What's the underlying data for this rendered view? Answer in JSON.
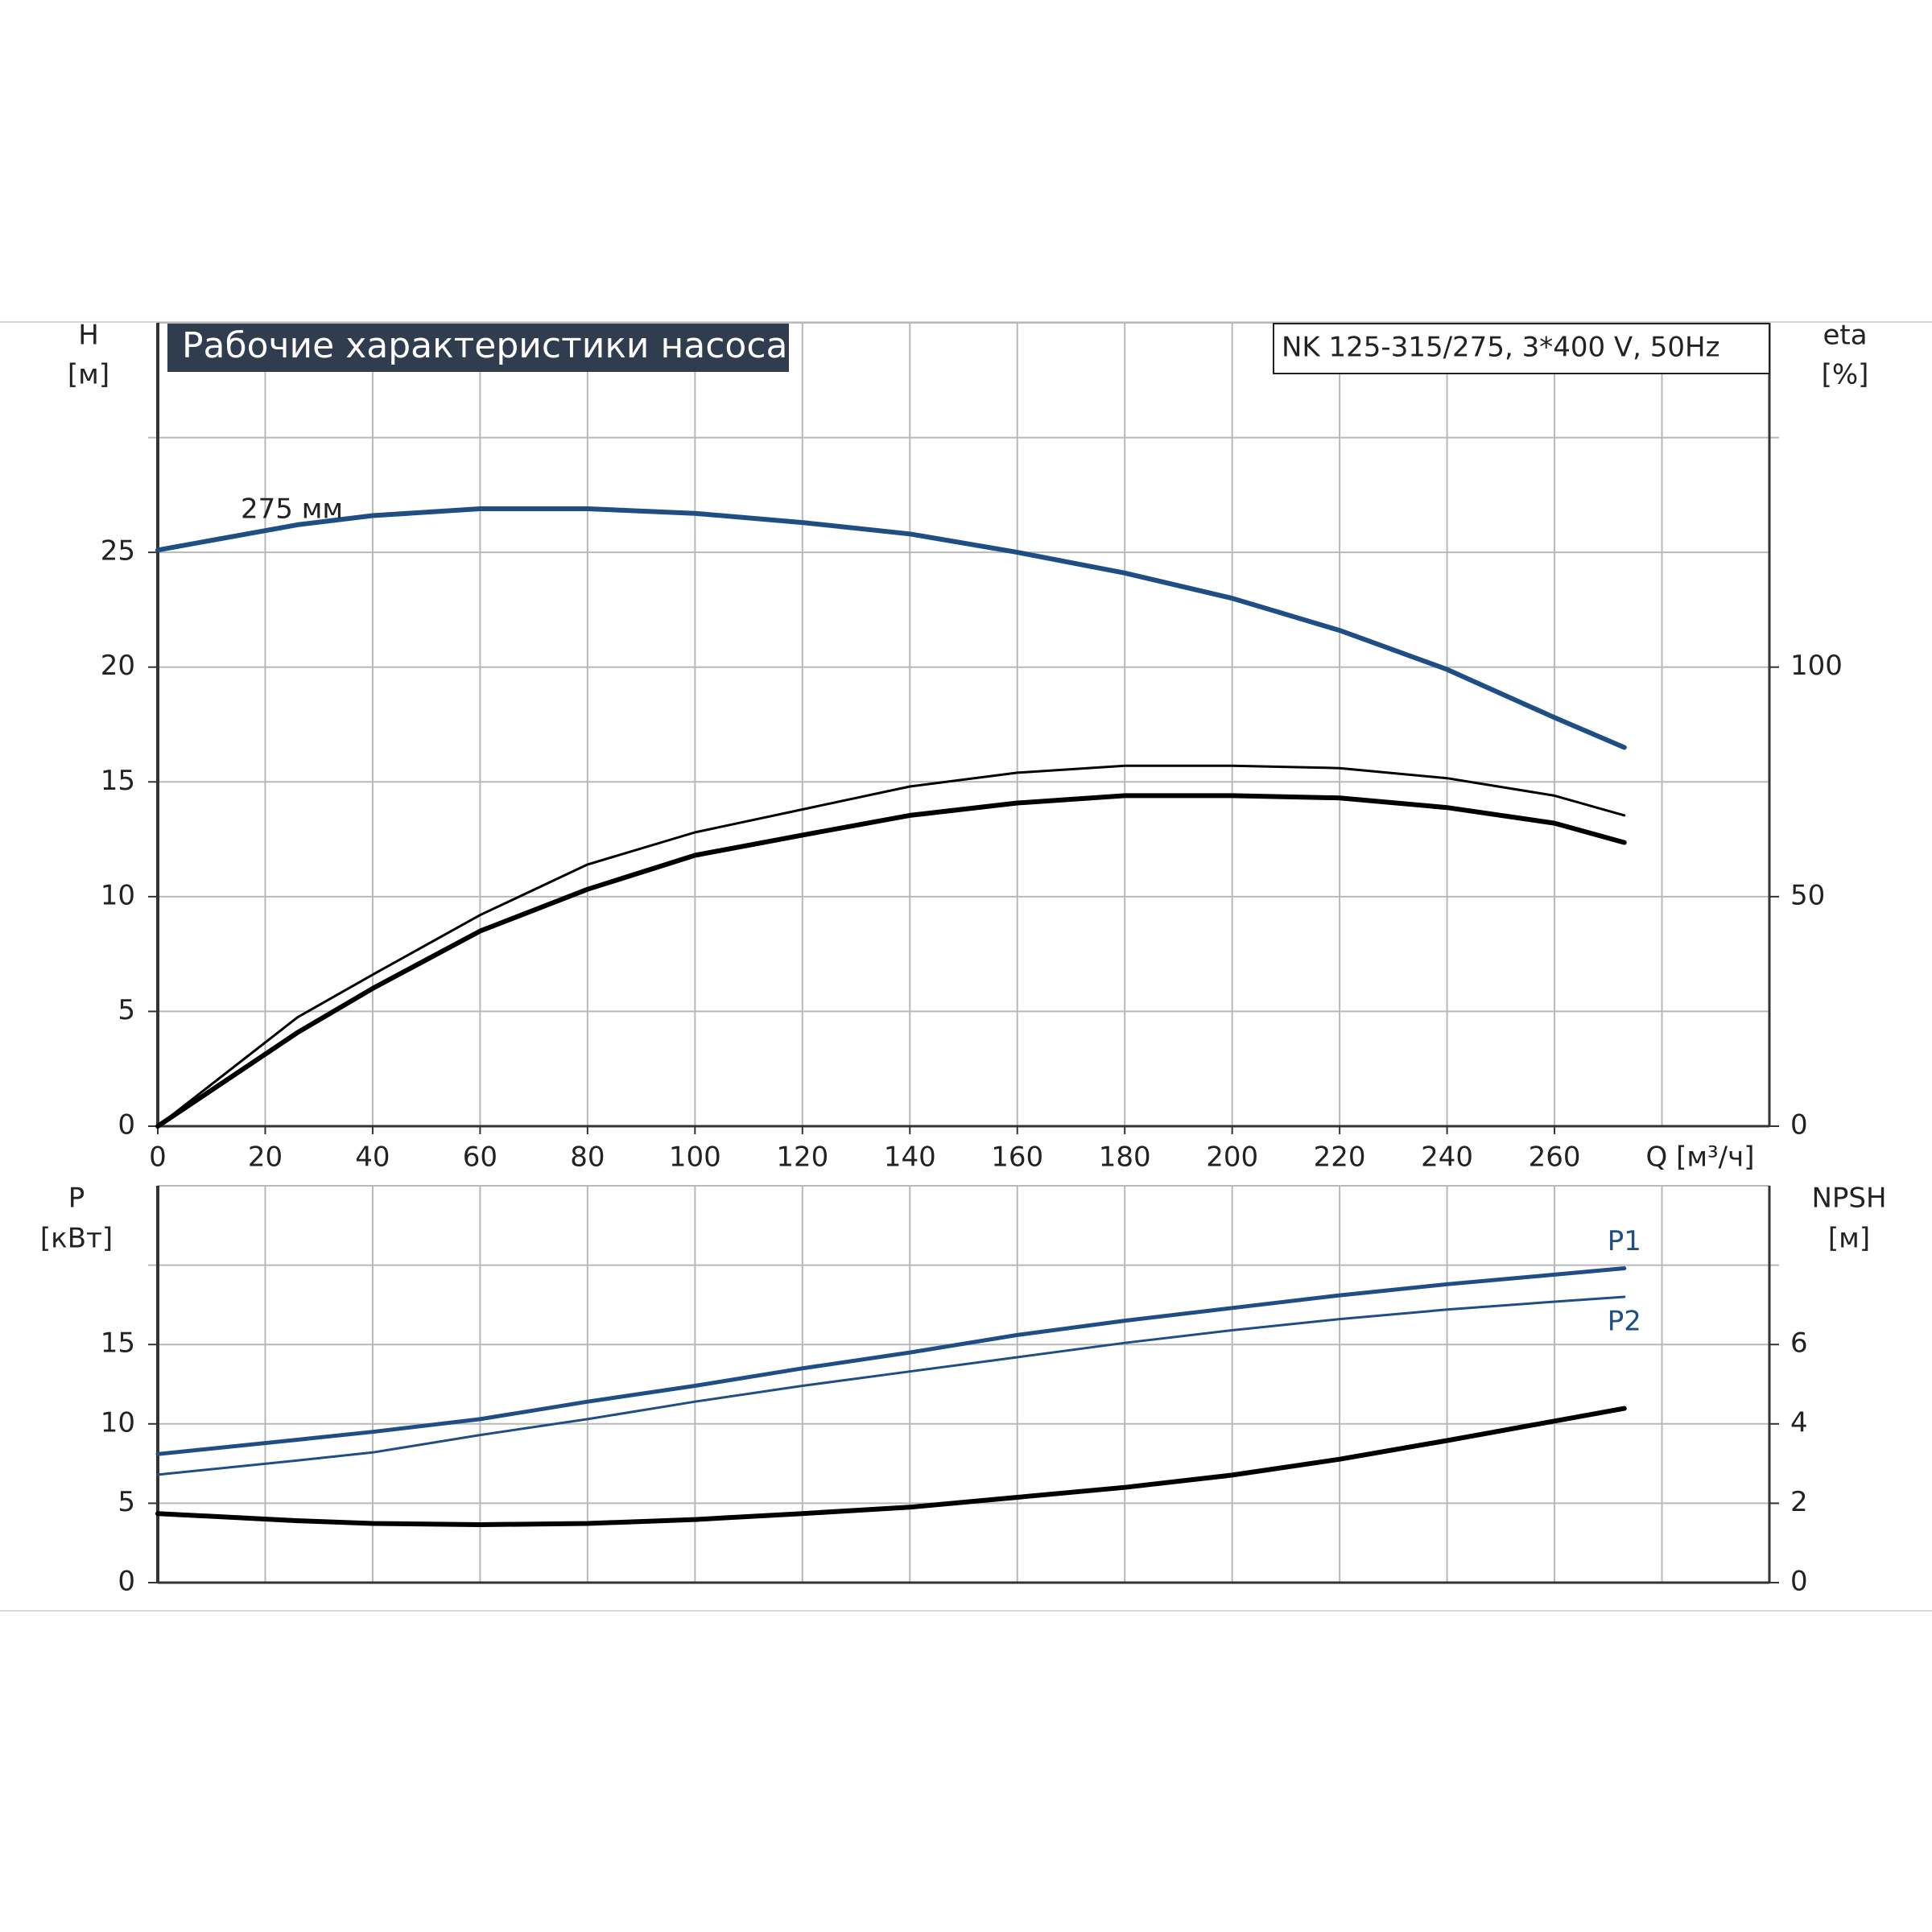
{
  "chart_data": [
    {
      "type": "line",
      "title": "Рабочие характеристики насоса",
      "subtitle": "NK 125-315/275, 3*400 V, 50Hz",
      "annotation": "275 мм",
      "ylabel": "H",
      "ylabel_unit": "[м]",
      "y2label": "eta",
      "y2label_unit": "[%]",
      "xlabel": "Q [м³/ч]",
      "xlim": [
        0,
        300
      ],
      "xticks": [
        0,
        20,
        40,
        60,
        80,
        100,
        120,
        140,
        160,
        180,
        200,
        220,
        240,
        260
      ],
      "xgrid": [
        280
      ],
      "ylim": [
        0,
        35
      ],
      "yticks": [
        0,
        5,
        10,
        15,
        20,
        25
      ],
      "ygrid": [
        30
      ],
      "y2lim": [
        0,
        175
      ],
      "y2ticks": [
        0,
        50,
        100
      ],
      "grid": true,
      "x": [
        0,
        26,
        40,
        60,
        80,
        100,
        120,
        140,
        160,
        180,
        200,
        220,
        240,
        260,
        273
      ],
      "series": [
        {
          "color": "#1f4e85",
          "width": 6,
          "values": [
            25.1,
            26.2,
            26.6,
            26.9,
            26.9,
            26.7,
            26.3,
            25.8,
            25.0,
            24.1,
            23.0,
            21.6,
            19.9,
            17.8,
            16.5
          ]
        },
        {
          "color": "#000000",
          "width": 3,
          "axis": "y2",
          "values": [
            0,
            23.7,
            33,
            46,
            57,
            64,
            69,
            74,
            77,
            78.5,
            78.5,
            78,
            75.8,
            72,
            67.7
          ]
        },
        {
          "color": "#000000",
          "width": 6,
          "axis": "y2",
          "values": [
            0,
            20.4,
            30,
            42.5,
            51.6,
            59,
            63.4,
            67.7,
            70.4,
            72,
            72,
            71.5,
            69.4,
            66,
            61.8
          ]
        }
      ]
    },
    {
      "type": "line",
      "ylabel": "P",
      "ylabel_unit": "[кВт]",
      "y2label": "NPSH",
      "y2label_unit": "[м]",
      "xlim": [
        0,
        300
      ],
      "xgrid": [
        0,
        20,
        40,
        60,
        80,
        100,
        120,
        140,
        160,
        180,
        200,
        220,
        240,
        260,
        280
      ],
      "ylim": [
        0,
        25
      ],
      "yticks": [
        0,
        5,
        10,
        15
      ],
      "ygrid": [
        20
      ],
      "y2lim": [
        0,
        10
      ],
      "y2ticks": [
        0,
        2,
        4,
        6
      ],
      "grid": true,
      "x": [
        0,
        26,
        40,
        60,
        80,
        100,
        120,
        140,
        160,
        180,
        200,
        220,
        240,
        260,
        273
      ],
      "series": [
        {
          "name": "P1",
          "color": "#1f4e85",
          "width": 5,
          "values": [
            8.1,
            9.0,
            9.5,
            10.3,
            11.4,
            12.4,
            13.5,
            14.5,
            15.6,
            16.5,
            17.3,
            18.1,
            18.8,
            19.4,
            19.8
          ]
        },
        {
          "name": "P2",
          "color": "#1f4e85",
          "width": 3,
          "values": [
            6.8,
            7.7,
            8.2,
            9.3,
            10.3,
            11.4,
            12.4,
            13.3,
            14.2,
            15.1,
            15.9,
            16.6,
            17.2,
            17.7,
            18.0
          ]
        },
        {
          "color": "#000000",
          "width": 6,
          "axis": "y2",
          "values": [
            1.74,
            1.56,
            1.49,
            1.46,
            1.49,
            1.59,
            1.74,
            1.9,
            2.15,
            2.4,
            2.71,
            3.11,
            3.58,
            4.07,
            4.39
          ]
        }
      ]
    }
  ]
}
